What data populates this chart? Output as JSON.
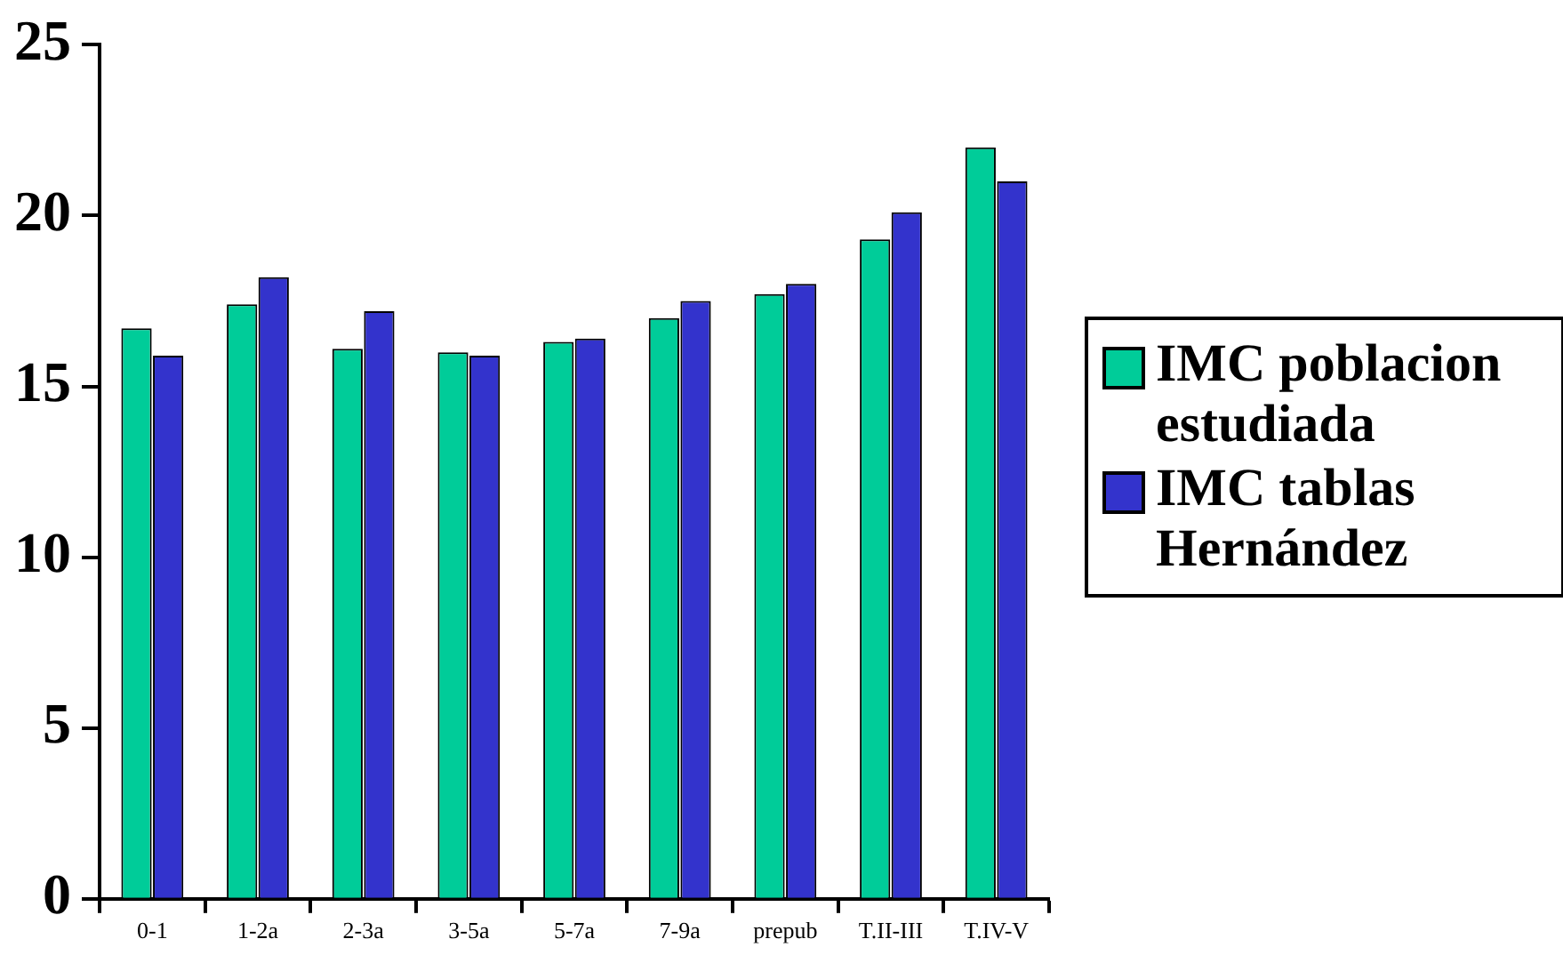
{
  "chart_data": {
    "type": "bar",
    "categories": [
      "0-1",
      "1-2a",
      "2-3a",
      "3-5a",
      "5-7a",
      "7-9a",
      "prepub",
      "T.II-III",
      "T.IV-V"
    ],
    "series": [
      {
        "name": "IMC poblacion estudiada",
        "color": "#00cc99",
        "values": [
          16.7,
          17.4,
          16.1,
          16.0,
          16.3,
          17.0,
          17.7,
          19.3,
          22.0
        ]
      },
      {
        "name": "IMC tablas Hernández",
        "color": "#3333cc",
        "values": [
          15.9,
          18.2,
          17.2,
          15.9,
          16.4,
          17.5,
          18.0,
          20.1,
          21.0
        ]
      }
    ],
    "ylim": [
      0,
      25
    ],
    "yticks": [
      0,
      5,
      10,
      15,
      20,
      25
    ],
    "grid": false,
    "legend": "right"
  }
}
